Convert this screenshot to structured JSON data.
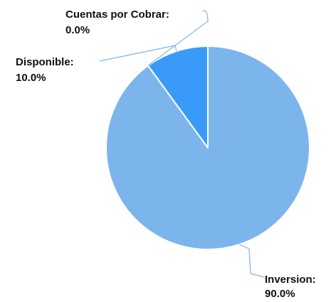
{
  "chart_data": {
    "type": "pie",
    "title": "",
    "slices": [
      {
        "name": "Inversion",
        "value": 90.0,
        "value_label": "90.0%",
        "color": "#7cb5ec"
      },
      {
        "name": "Cuentas por Cobrar",
        "value": 0.0,
        "value_label": "0.0%",
        "color": "#a9d2f6"
      },
      {
        "name": "Disponible",
        "value": 10.0,
        "value_label": "10.0%",
        "color": "#3a9af8"
      }
    ],
    "connector_color": "#7cb5ec",
    "slice_border_color": "#ffffff",
    "legend": "none"
  }
}
